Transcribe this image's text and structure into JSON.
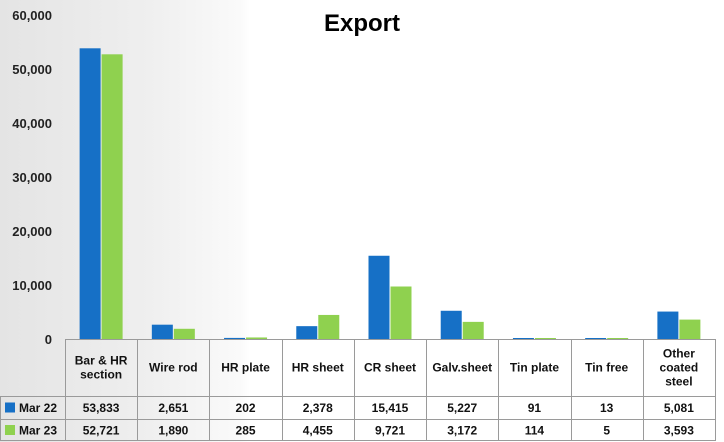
{
  "chart_data": {
    "type": "bar",
    "title": "Export",
    "categories": [
      [
        "Bar & HR",
        "section"
      ],
      [
        "Wire rod"
      ],
      [
        "HR plate"
      ],
      [
        "HR sheet"
      ],
      [
        "CR sheet"
      ],
      [
        "Galv.sheet"
      ],
      [
        "Tin plate"
      ],
      [
        "Tin free"
      ],
      [
        "Other",
        "coated",
        "steel"
      ]
    ],
    "series": [
      {
        "name": "Mar 22",
        "color": "#1670c6",
        "values": [
          53833,
          2651,
          202,
          2378,
          15415,
          5227,
          91,
          13,
          5081
        ],
        "labels": [
          "53,833",
          "2,651",
          "202",
          "2,378",
          "15,415",
          "5,227",
          "91",
          "13",
          "5,081"
        ]
      },
      {
        "name": "Mar 23",
        "color": "#8fd14f",
        "values": [
          52721,
          1890,
          285,
          4455,
          9721,
          3172,
          114,
          5,
          3593
        ],
        "labels": [
          "52,721",
          "1,890",
          "285",
          "4,455",
          "9,721",
          "3,172",
          "114",
          "5",
          "3,593"
        ]
      }
    ],
    "ylim": [
      0,
      60000
    ],
    "yticks": [
      0,
      10000,
      20000,
      30000,
      40000,
      50000,
      60000
    ],
    "ytick_labels": [
      "0",
      "10,000",
      "20,000",
      "30,000",
      "40,000",
      "50,000",
      "60,000"
    ],
    "grid": false,
    "legend": "data-table"
  }
}
